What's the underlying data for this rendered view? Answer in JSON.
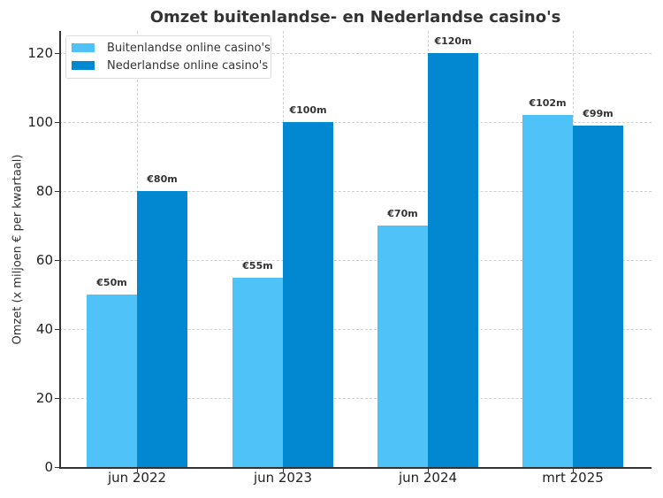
{
  "chart_data": {
    "type": "bar",
    "title": "Omzet buitenlandse- en Nederlandse casino's",
    "xlabel": "",
    "ylabel": "Omzet (x miljoen € per kwartaal)",
    "ylim": [
      0,
      126
    ],
    "yticks": [
      0,
      20,
      40,
      60,
      80,
      100,
      120
    ],
    "grid": true,
    "legend_position": "upper left",
    "categories": [
      "jun 2022",
      "jun 2023",
      "jun 2024",
      "mrt 2025"
    ],
    "series": [
      {
        "name": "Buitenlandse online casino's",
        "color": "#4fc3f7",
        "values": [
          50,
          55,
          70,
          102
        ],
        "labels": [
          "€50m",
          "€55m",
          "€70m",
          "€102m"
        ]
      },
      {
        "name": "Nederlandse online casino's",
        "color": "#0288d1",
        "values": [
          80,
          100,
          120,
          99
        ],
        "labels": [
          "€80m",
          "€100m",
          "€120m",
          "€99m"
        ]
      }
    ]
  }
}
